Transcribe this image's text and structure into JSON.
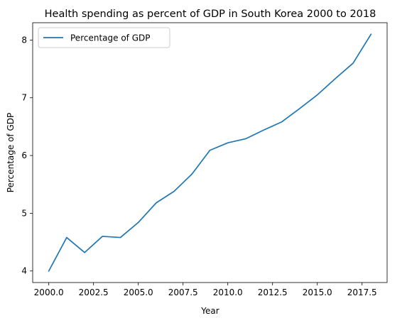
{
  "chart_data": {
    "type": "line",
    "title": "Health spending as percent of GDP in South Korea 2000 to 2018",
    "xlabel": "Year",
    "ylabel": "Percentage of GDP",
    "xlim": [
      1999.1,
      2018.9
    ],
    "ylim": [
      3.8,
      8.3
    ],
    "xticks": [
      2000.0,
      2002.5,
      2005.0,
      2007.5,
      2010.0,
      2012.5,
      2015.0,
      2017.5
    ],
    "xtick_labels": [
      "2000.0",
      "2002.5",
      "2005.0",
      "2007.5",
      "2010.0",
      "2012.5",
      "2015.0",
      "2017.5"
    ],
    "yticks": [
      4,
      5,
      6,
      7,
      8
    ],
    "ytick_labels": [
      "4",
      "5",
      "6",
      "7",
      "8"
    ],
    "grid": false,
    "legend_position": "upper-left",
    "series": [
      {
        "name": "Percentage of GDP",
        "color": "#1f77b4",
        "x": [
          2000,
          2001,
          2002,
          2003,
          2004,
          2005,
          2006,
          2007,
          2008,
          2009,
          2010,
          2011,
          2012,
          2013,
          2014,
          2015,
          2016,
          2017,
          2018
        ],
        "y": [
          4.0,
          4.58,
          4.32,
          4.6,
          4.58,
          4.84,
          5.18,
          5.38,
          5.68,
          6.09,
          6.22,
          6.29,
          6.44,
          6.58,
          6.81,
          7.05,
          7.33,
          7.6,
          8.1
        ]
      }
    ]
  }
}
